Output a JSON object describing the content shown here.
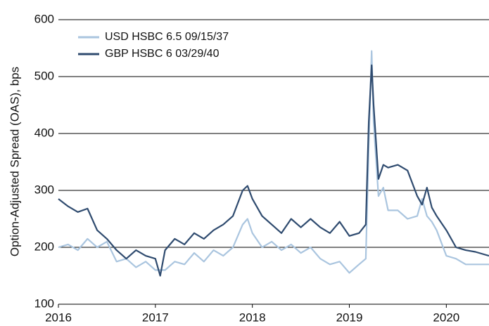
{
  "chart_data": {
    "type": "line",
    "y_label": "Option-Adjusted Spread (OAS), bps",
    "x": [
      2016.0,
      2016.1,
      2016.2,
      2016.3,
      2016.4,
      2016.5,
      2016.6,
      2016.7,
      2016.8,
      2016.9,
      2017.0,
      2017.05,
      2017.1,
      2017.2,
      2017.3,
      2017.4,
      2017.5,
      2017.6,
      2017.7,
      2017.8,
      2017.9,
      2017.95,
      2018.0,
      2018.1,
      2018.2,
      2018.3,
      2018.4,
      2018.5,
      2018.6,
      2018.7,
      2018.8,
      2018.9,
      2019.0,
      2019.1,
      2019.17,
      2019.2,
      2019.23,
      2019.25,
      2019.3,
      2019.35,
      2019.4,
      2019.5,
      2019.6,
      2019.7,
      2019.75,
      2019.8,
      2019.85,
      2019.9,
      2020.0,
      2020.1,
      2020.2,
      2020.3,
      2020.44
    ],
    "series": [
      {
        "name": "USD HSBC 6.5 09/15/37",
        "color": "#aac5df",
        "values": [
          200,
          205,
          195,
          215,
          200,
          210,
          175,
          180,
          165,
          175,
          160,
          160,
          160,
          175,
          170,
          190,
          175,
          195,
          185,
          200,
          240,
          250,
          225,
          200,
          210,
          195,
          205,
          190,
          200,
          180,
          170,
          175,
          155,
          170,
          180,
          380,
          545,
          420,
          290,
          305,
          265,
          265,
          250,
          255,
          285,
          255,
          245,
          230,
          185,
          180,
          170,
          170,
          170
        ]
      },
      {
        "name": "GBP HSBC 6 03/29/40",
        "color": "#2f4b6f",
        "values": [
          285,
          272,
          262,
          268,
          230,
          215,
          195,
          180,
          195,
          185,
          180,
          150,
          195,
          215,
          205,
          225,
          215,
          230,
          240,
          255,
          300,
          308,
          285,
          255,
          240,
          225,
          250,
          235,
          250,
          235,
          225,
          245,
          220,
          225,
          240,
          420,
          520,
          450,
          320,
          345,
          340,
          345,
          335,
          290,
          275,
          305,
          270,
          255,
          230,
          200,
          195,
          192,
          185
        ]
      }
    ],
    "xlim": [
      2016,
      2020.44
    ],
    "xticks": [
      2016,
      2017,
      2018,
      2019,
      2020
    ],
    "ylim": [
      100,
      600
    ],
    "yticks": [
      100,
      200,
      300,
      400,
      500,
      600
    ],
    "grid": true,
    "legend": "top-left"
  }
}
